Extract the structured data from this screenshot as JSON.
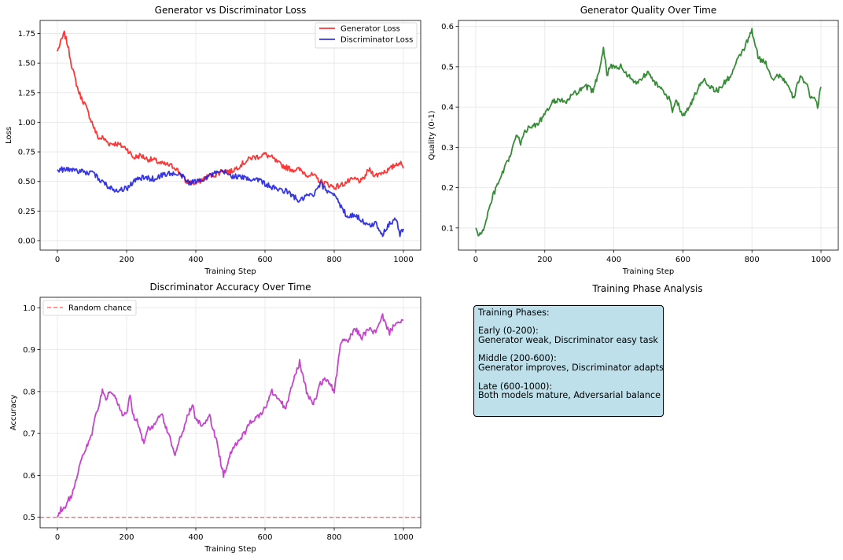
{
  "chart_data": [
    {
      "type": "line",
      "title": "Generator vs Discriminator Loss",
      "xlabel": "Training Step",
      "ylabel": "Loss",
      "xlim": [
        -50,
        1050
      ],
      "ylim": [
        -0.08,
        1.86
      ],
      "xticks": [
        0,
        200,
        400,
        600,
        800,
        1000
      ],
      "yticks": [
        0.0,
        0.25,
        0.5,
        0.75,
        1.0,
        1.25,
        1.5,
        1.75
      ],
      "ytick_labels": [
        "0.00",
        "0.25",
        "0.50",
        "0.75",
        "1.00",
        "1.25",
        "1.50",
        "1.75"
      ],
      "grid": true,
      "legend": "top-right",
      "x": [
        0,
        10,
        20,
        30,
        40,
        50,
        60,
        70,
        80,
        90,
        100,
        110,
        120,
        130,
        150,
        170,
        200,
        220,
        240,
        260,
        280,
        300,
        320,
        340,
        360,
        370,
        380,
        400,
        420,
        440,
        460,
        480,
        500,
        520,
        540,
        560,
        580,
        600,
        620,
        640,
        660,
        680,
        700,
        720,
        740,
        760,
        780,
        800,
        820,
        840,
        860,
        880,
        900,
        920,
        940,
        960,
        980,
        990,
        1000
      ],
      "series": [
        {
          "name": "Generator Loss",
          "color": "#ff2020",
          "values": [
            1.6,
            1.68,
            1.75,
            1.65,
            1.5,
            1.38,
            1.27,
            1.2,
            1.15,
            1.07,
            1.0,
            0.92,
            0.86,
            0.87,
            0.82,
            0.82,
            0.78,
            0.7,
            0.72,
            0.69,
            0.68,
            0.65,
            0.64,
            0.62,
            0.55,
            0.5,
            0.5,
            0.48,
            0.52,
            0.55,
            0.56,
            0.6,
            0.58,
            0.62,
            0.66,
            0.7,
            0.71,
            0.73,
            0.7,
            0.65,
            0.62,
            0.6,
            0.6,
            0.56,
            0.55,
            0.5,
            0.48,
            0.45,
            0.47,
            0.5,
            0.52,
            0.5,
            0.6,
            0.55,
            0.58,
            0.6,
            0.65,
            0.66,
            0.61
          ]
        },
        {
          "name": "Discriminator Loss",
          "color": "#2020e0",
          "values": [
            0.6,
            0.6,
            0.6,
            0.6,
            0.6,
            0.6,
            0.59,
            0.58,
            0.58,
            0.57,
            0.57,
            0.55,
            0.52,
            0.5,
            0.45,
            0.43,
            0.44,
            0.5,
            0.53,
            0.53,
            0.52,
            0.55,
            0.57,
            0.56,
            0.55,
            0.51,
            0.49,
            0.5,
            0.52,
            0.55,
            0.57,
            0.58,
            0.55,
            0.54,
            0.53,
            0.52,
            0.52,
            0.48,
            0.45,
            0.43,
            0.42,
            0.38,
            0.33,
            0.38,
            0.38,
            0.48,
            0.42,
            0.4,
            0.28,
            0.2,
            0.22,
            0.17,
            0.12,
            0.15,
            0.05,
            0.15,
            0.18,
            0.05,
            0.1
          ]
        }
      ]
    },
    {
      "type": "line",
      "title": "Generator Quality Over Time",
      "xlabel": "Training Step",
      "ylabel": "Quality (0-1)",
      "xlim": [
        -50,
        1050
      ],
      "ylim": [
        0.045,
        0.615
      ],
      "xticks": [
        0,
        200,
        400,
        600,
        800,
        1000
      ],
      "yticks": [
        0.1,
        0.2,
        0.3,
        0.4,
        0.5,
        0.6
      ],
      "ytick_labels": [
        "0.1",
        "0.2",
        "0.3",
        "0.4",
        "0.5",
        "0.6"
      ],
      "grid": true,
      "x": [
        0,
        10,
        20,
        30,
        40,
        50,
        60,
        70,
        80,
        90,
        100,
        110,
        120,
        130,
        140,
        160,
        180,
        200,
        220,
        240,
        260,
        280,
        300,
        320,
        340,
        360,
        370,
        380,
        390,
        400,
        420,
        440,
        460,
        480,
        500,
        520,
        540,
        560,
        570,
        580,
        600,
        620,
        640,
        660,
        680,
        700,
        720,
        740,
        760,
        780,
        790,
        800,
        810,
        820,
        840,
        860,
        880,
        900,
        920,
        940,
        960,
        970,
        980,
        990,
        1000
      ],
      "series": [
        {
          "name": "",
          "color": "#208020",
          "values": [
            0.1,
            0.08,
            0.09,
            0.12,
            0.15,
            0.18,
            0.2,
            0.22,
            0.24,
            0.26,
            0.28,
            0.31,
            0.33,
            0.31,
            0.34,
            0.35,
            0.36,
            0.38,
            0.41,
            0.42,
            0.41,
            0.43,
            0.44,
            0.45,
            0.44,
            0.5,
            0.55,
            0.48,
            0.5,
            0.5,
            0.5,
            0.48,
            0.46,
            0.47,
            0.49,
            0.46,
            0.44,
            0.42,
            0.39,
            0.42,
            0.38,
            0.4,
            0.44,
            0.47,
            0.45,
            0.44,
            0.46,
            0.48,
            0.52,
            0.55,
            0.57,
            0.59,
            0.55,
            0.52,
            0.51,
            0.47,
            0.48,
            0.46,
            0.42,
            0.48,
            0.45,
            0.42,
            0.43,
            0.4,
            0.45
          ]
        }
      ]
    },
    {
      "type": "line",
      "title": "Discriminator Accuracy Over Time",
      "xlabel": "Training Step",
      "ylabel": "Accuracy",
      "xlim": [
        -50,
        1050
      ],
      "ylim": [
        0.475,
        1.025
      ],
      "xticks": [
        0,
        200,
        400,
        600,
        800,
        1000
      ],
      "yticks": [
        0.5,
        0.6,
        0.7,
        0.8,
        0.9,
        1.0
      ],
      "ytick_labels": [
        "0.5",
        "0.6",
        "0.7",
        "0.8",
        "0.9",
        "1.0"
      ],
      "grid": true,
      "legend": "top-left",
      "hline": {
        "y": 0.5,
        "name": "Random chance",
        "color": "#ff5a5a"
      },
      "x": [
        0,
        10,
        20,
        30,
        40,
        50,
        60,
        70,
        80,
        90,
        100,
        110,
        120,
        130,
        140,
        150,
        160,
        170,
        180,
        190,
        200,
        210,
        220,
        230,
        240,
        250,
        260,
        280,
        300,
        320,
        340,
        360,
        380,
        390,
        400,
        420,
        440,
        460,
        480,
        500,
        520,
        540,
        560,
        580,
        600,
        620,
        640,
        660,
        680,
        700,
        720,
        740,
        760,
        780,
        800,
        810,
        820,
        840,
        860,
        880,
        900,
        920,
        940,
        960,
        980,
        990,
        1000
      ],
      "series": [
        {
          "name": "",
          "color": "#c030c8",
          "values": [
            0.5,
            0.52,
            0.52,
            0.54,
            0.55,
            0.58,
            0.61,
            0.64,
            0.66,
            0.68,
            0.7,
            0.74,
            0.77,
            0.8,
            0.78,
            0.8,
            0.79,
            0.78,
            0.76,
            0.74,
            0.75,
            0.79,
            0.74,
            0.73,
            0.7,
            0.68,
            0.71,
            0.72,
            0.75,
            0.7,
            0.65,
            0.7,
            0.75,
            0.77,
            0.73,
            0.72,
            0.74,
            0.68,
            0.6,
            0.65,
            0.68,
            0.7,
            0.73,
            0.74,
            0.76,
            0.8,
            0.78,
            0.76,
            0.82,
            0.87,
            0.8,
            0.77,
            0.82,
            0.83,
            0.8,
            0.86,
            0.92,
            0.92,
            0.95,
            0.93,
            0.95,
            0.94,
            0.98,
            0.94,
            0.97,
            0.96,
            0.97
          ]
        }
      ]
    }
  ],
  "phase_panel": {
    "title": "Training Phase Analysis",
    "heading": "Training Phases:",
    "phases": [
      {
        "label": "Early (0-200):",
        "desc": "Generator weak, Discriminator easy task"
      },
      {
        "label": "Middle (200-600):",
        "desc": "Generator improves, Discriminator adapts"
      },
      {
        "label": "Late (600-1000):",
        "desc": "Both models mature, Adversarial balance"
      }
    ]
  }
}
